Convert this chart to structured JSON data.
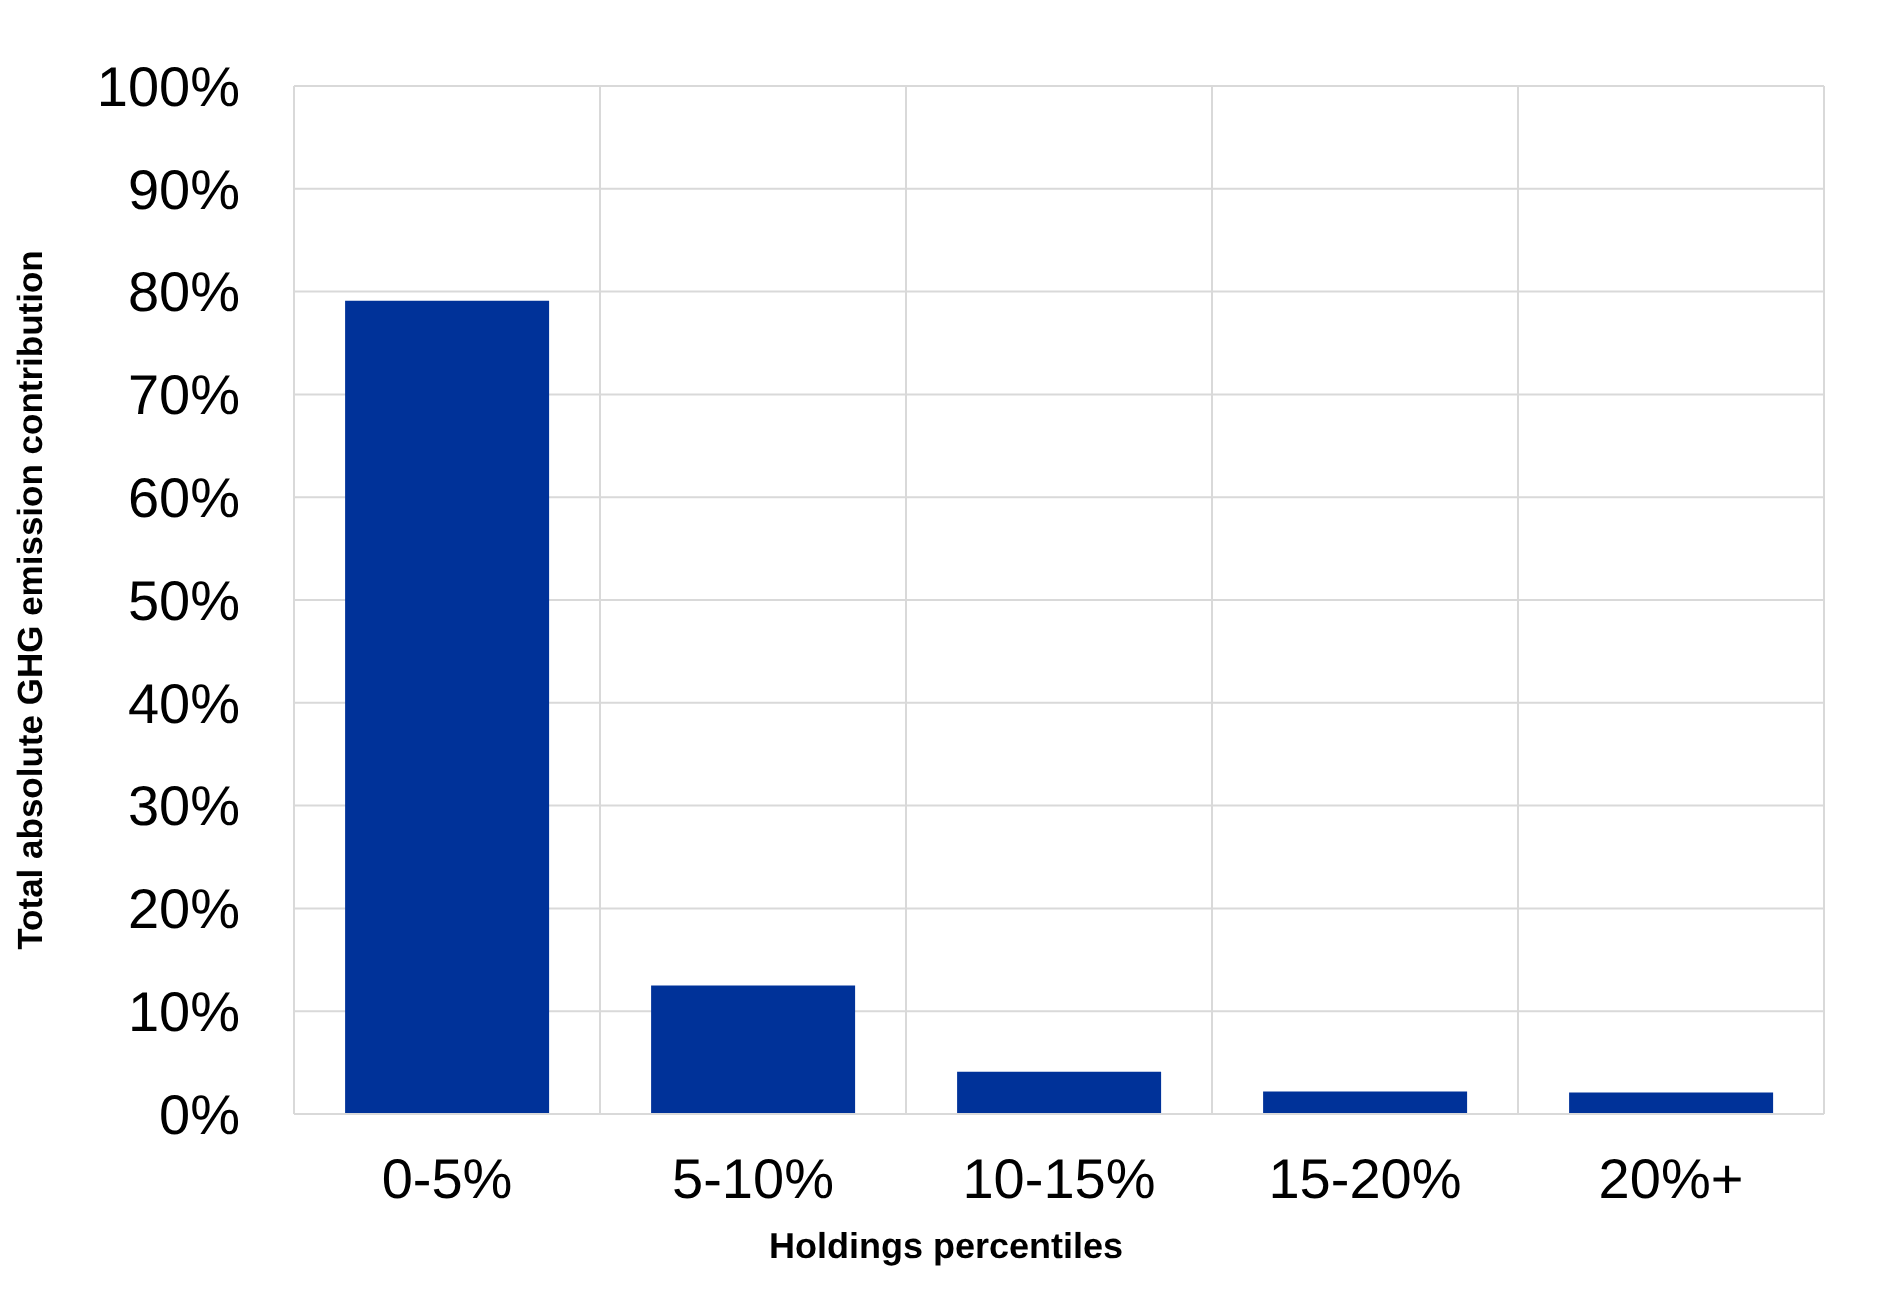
{
  "chart_data": {
    "type": "bar",
    "xlabel": "Holdings percentiles",
    "ylabel": "Total absolute GHG emission contribution",
    "categories": [
      "0-5%",
      "5-10%",
      "10-15%",
      "15-20%",
      "20%+"
    ],
    "values": [
      79.1,
      12.5,
      4.1,
      2.2,
      2.1
    ],
    "color": "#003299",
    "ylim": [
      0,
      100
    ],
    "yticks": [
      {
        "value": 0,
        "label": "0%"
      },
      {
        "value": 10,
        "label": "10%"
      },
      {
        "value": 20,
        "label": "20%"
      },
      {
        "value": 30,
        "label": "30%"
      },
      {
        "value": 40,
        "label": "40%"
      },
      {
        "value": 50,
        "label": "50%"
      },
      {
        "value": 60,
        "label": "60%"
      },
      {
        "value": 70,
        "label": "70%"
      },
      {
        "value": 80,
        "label": "80%"
      },
      {
        "value": 90,
        "label": "90%"
      },
      {
        "value": 100,
        "label": "100%"
      }
    ],
    "grid": true
  }
}
